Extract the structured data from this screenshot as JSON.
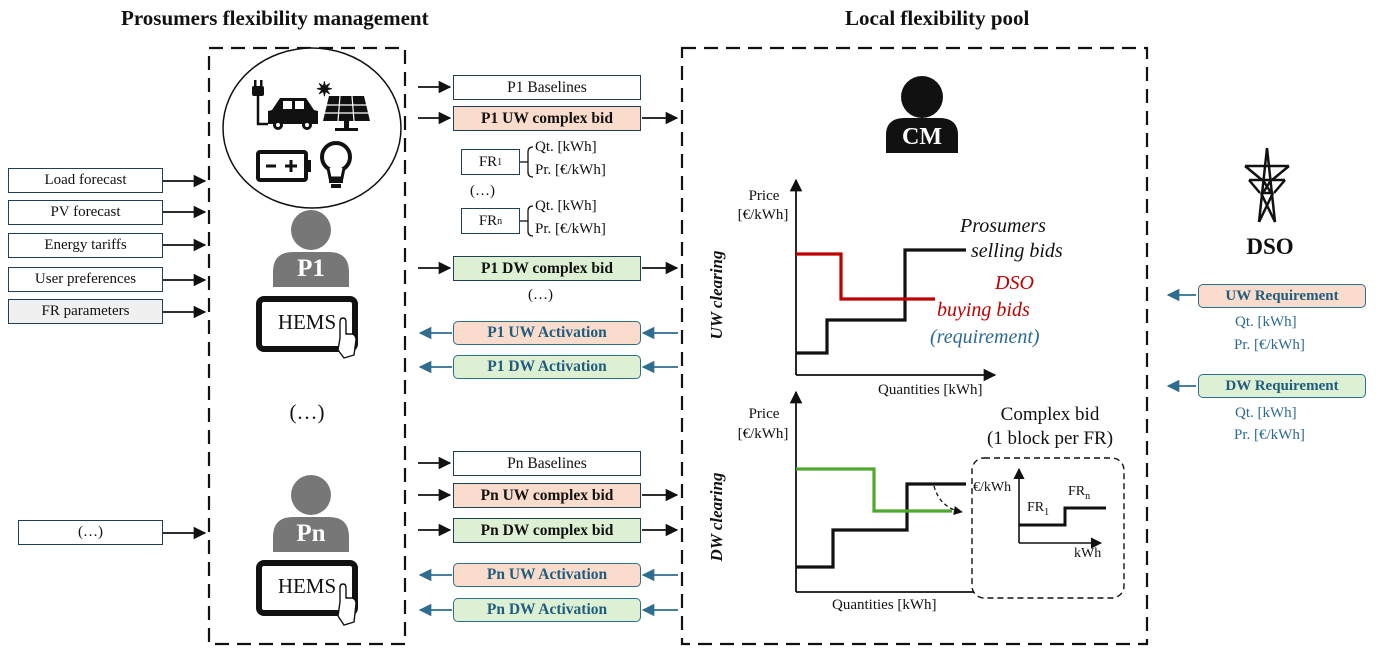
{
  "headings": {
    "left": "Prosumers flexibility management",
    "right": "Local flexibility pool"
  },
  "inputs": [
    "Load forecast",
    "PV forecast",
    "Energy tariffs",
    "User preferences",
    "FR parameters"
  ],
  "inputs_ellipsis": "(…)",
  "prosumers": {
    "p1": "P1",
    "pn": "Pn",
    "hems": "HEMS",
    "middle_ellipsis": "(…)"
  },
  "p1": {
    "baselines": "P1 Baselines",
    "uw_bid": "P1 UW complex bid",
    "dw_bid": "P1 DW complex bid",
    "uw_activation": "P1 UW Activation",
    "dw_activation": "P1 DW Activation",
    "fr1": "FR",
    "fr1_sub": "1",
    "frn": "FR",
    "frn_sub": "n",
    "qt": "Qt. [kWh]",
    "pr": "Pr. [€/kWh]",
    "fr_ellipsis": "(…)",
    "bids_ellipsis": "(…)"
  },
  "pn": {
    "baselines": "Pn Baselines",
    "uw_bid": "Pn UW complex bid",
    "dw_bid": "Pn DW complex bid",
    "uw_activation": "Pn UW Activation",
    "dw_activation": "Pn DW Activation"
  },
  "pool": {
    "cm": "CM",
    "uw_clearing": "UW clearing",
    "dw_clearing": "DW clearing",
    "price_label_1": "Price",
    "price_label_2": "[€/kWh]",
    "quantities_label": "Quantities [kWh]",
    "prosumers_bids_1": "Prosumers",
    "prosumers_bids_2": "selling bids",
    "dso_bids_1": "DSO",
    "dso_bids_2": "buying bids",
    "dso_bids_3": "(requirement)",
    "complex_bid_1": "Complex bid",
    "complex_bid_2": "(1 block per FR)",
    "inset_y": "€/kWh",
    "inset_x": "kWh",
    "inset_fr1": "FR",
    "inset_fr1_sub": "1",
    "inset_frn": "FR",
    "inset_frn_sub": "n"
  },
  "dso": {
    "label": "DSO",
    "uw_requirement": "UW Requirement",
    "dw_requirement": "DW Requirement",
    "qt": "Qt. [kWh]",
    "pr": "Pr. [€/kWh]"
  },
  "colors": {
    "uw_fill": "#f9dccc",
    "dw_fill": "#def0d4",
    "activation_arrow": "#2f6d8e",
    "dso_curve_uw": "#c00000",
    "dso_curve_dw": "#4ea72e",
    "requirement_text": "#2b6a95"
  },
  "icons": [
    "ev-charging-icon",
    "solar-panel-icon",
    "battery-icon",
    "light-bulb-icon",
    "person-icon",
    "tablet-icon",
    "hand-pointer-icon",
    "transmission-tower-icon"
  ]
}
